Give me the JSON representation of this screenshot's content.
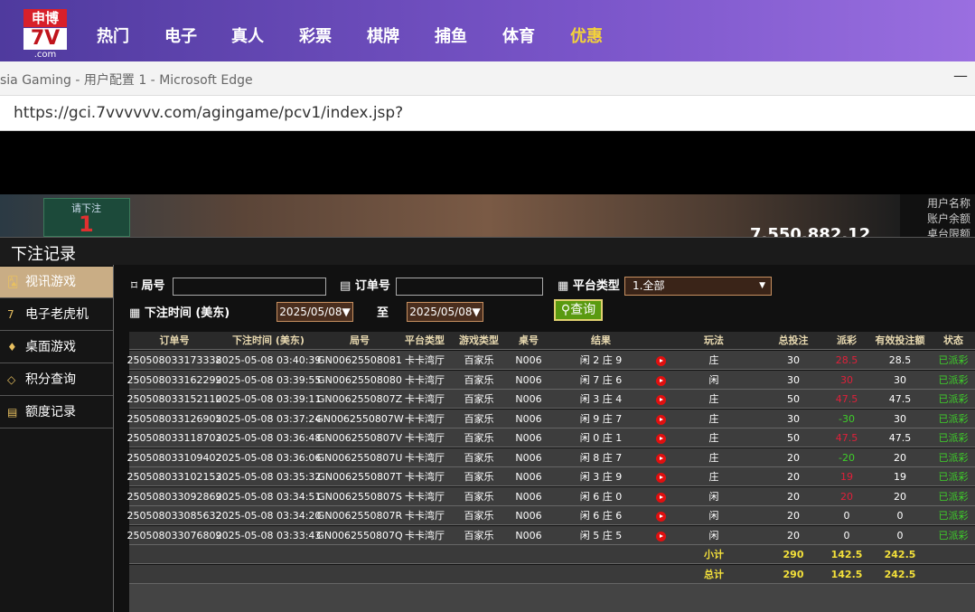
{
  "nav": {
    "logo": {
      "top": "申博",
      "main": "7V",
      "sub": ".com"
    },
    "items": [
      "热门",
      "电子",
      "真人",
      "彩票",
      "棋牌",
      "捕鱼",
      "体育",
      "优惠"
    ]
  },
  "browser": {
    "title": "sia Gaming - 用户配置 1 - Microsoft Edge",
    "url": "https://gci.7vvvvvv.com/agingame/pcv1/index.jsp?"
  },
  "banner": {
    "bet_prompt": "请下注",
    "bet_count": "1",
    "balance": "7,550,882.12",
    "user_name_label": "用户名称",
    "balance_label": "账户余额",
    "limit_label": "桌台限额"
  },
  "panel": {
    "title": "下注记录"
  },
  "sidebar": [
    "视讯游戏",
    "电子老虎机",
    "桌面游戏",
    "积分查询",
    "额度记录"
  ],
  "filters": {
    "round_label": "局号",
    "order_label": "订单号",
    "platform_label": "平台类型",
    "platform_value": "1.全部",
    "time_label": "下注时间 (美东)",
    "date_from": "2025/05/08▼",
    "to_label": "至",
    "date_to": "2025/05/08▼",
    "query_button": "查询"
  },
  "table": {
    "headers": [
      "订单号",
      "下注时间 (美东)",
      "局号",
      "平台类型",
      "游戏类型",
      "桌号",
      "结果",
      "玩法",
      "总投注",
      "派彩",
      "有效投注额",
      "状态"
    ],
    "rows": [
      [
        "250508033173338",
        "2025-05-08 03:40:39",
        "GN00625508081",
        "卡卡湾厅",
        "百家乐",
        "N006",
        "闲 2 庄 9",
        "庄",
        30,
        28.5,
        28.5,
        "已派彩"
      ],
      [
        "250508033162299",
        "2025-05-08 03:39:55",
        "GN00625508080",
        "卡卡湾厅",
        "百家乐",
        "N006",
        "闲 7 庄 6",
        "闲",
        30,
        30,
        30,
        "已派彩"
      ],
      [
        "250508033152110",
        "2025-05-08 03:39:11",
        "GN0062550807Z",
        "卡卡湾厅",
        "百家乐",
        "N006",
        "闲 3 庄 4",
        "庄",
        50,
        47.5,
        47.5,
        "已派彩"
      ],
      [
        "250508033126905",
        "2025-05-08 03:37:24",
        "GN0062550807W",
        "卡卡湾厅",
        "百家乐",
        "N006",
        "闲 9 庄 7",
        "庄",
        30,
        -30,
        30,
        "已派彩"
      ],
      [
        "250508033118703",
        "2025-05-08 03:36:48",
        "GN0062550807V",
        "卡卡湾厅",
        "百家乐",
        "N006",
        "闲 0 庄 1",
        "庄",
        50,
        47.5,
        47.5,
        "已派彩"
      ],
      [
        "250508033109402",
        "2025-05-08 03:36:06",
        "GN0062550807U",
        "卡卡湾厅",
        "百家乐",
        "N006",
        "闲 8 庄 7",
        "庄",
        20,
        -20,
        20,
        "已派彩"
      ],
      [
        "250508033102153",
        "2025-05-08 03:35:32",
        "GN0062550807T",
        "卡卡湾厅",
        "百家乐",
        "N006",
        "闲 3 庄 9",
        "庄",
        20,
        19,
        19,
        "已派彩"
      ],
      [
        "250508033092869",
        "2025-05-08 03:34:51",
        "GN0062550807S",
        "卡卡湾厅",
        "百家乐",
        "N006",
        "闲 6 庄 0",
        "闲",
        20,
        20,
        20,
        "已派彩"
      ],
      [
        "250508033085632",
        "2025-05-08 03:34:20",
        "GN0062550807R",
        "卡卡湾厅",
        "百家乐",
        "N006",
        "闲 6 庄 6",
        "闲",
        20,
        0,
        0,
        "已派彩"
      ],
      [
        "250508033076809",
        "2025-05-08 03:33:43",
        "GN0062550807Q",
        "卡卡湾厅",
        "百家乐",
        "N006",
        "闲 5 庄 5",
        "闲",
        20,
        0,
        0,
        "已派彩"
      ]
    ],
    "summary": [
      {
        "label": "小计",
        "bet": 290,
        "pay": 142.5,
        "valid": 242.5
      },
      {
        "label": "总计",
        "bet": 290,
        "pay": 142.5,
        "valid": 242.5
      }
    ]
  }
}
